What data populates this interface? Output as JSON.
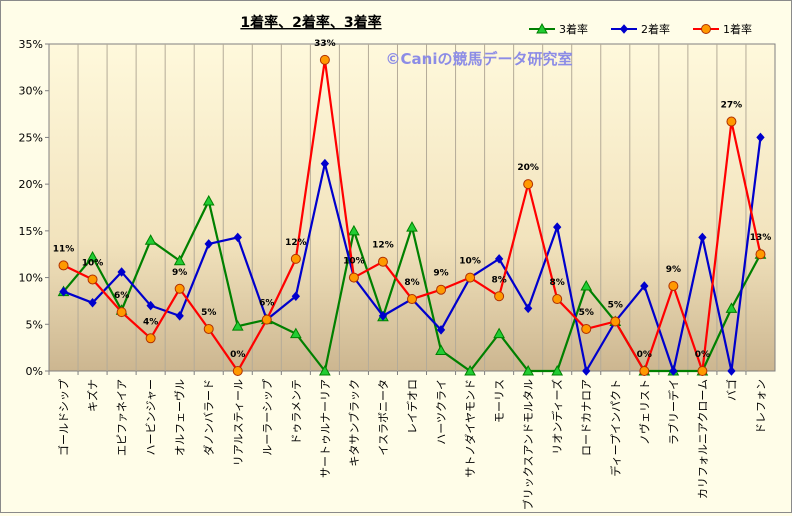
{
  "chart_data": {
    "type": "line",
    "title": "1着率、2着率、3着率",
    "watermark": "©Caniの競馬データ研究室",
    "xlabel": "",
    "ylabel": "",
    "ylim": [
      0,
      35
    ],
    "y_ticks": [
      "0%",
      "5%",
      "10%",
      "15%",
      "20%",
      "25%",
      "30%",
      "35%"
    ],
    "grid": "vertical",
    "legend_position": "top-right",
    "categories": [
      "ゴールドシップ",
      "キズナ",
      "エピファネイア",
      "ハービンジャー",
      "オルフェーヴル",
      "ダノンバラード",
      "リアルスティール",
      "ルーラーシップ",
      "ドゥラメンテ",
      "サートゥルナーリア",
      "キタサンブラック",
      "イスラボニータ",
      "レイデオロ",
      "ハーツクライ",
      "サトノダイヤモンド",
      "モーリス",
      "ブリックスアンドモルタル",
      "リオンディーズ",
      "ロードカナロア",
      "ディープインパクト",
      "ノヴェリスト",
      "ラブリーデイ",
      "カリフォルニアクローム",
      "バゴ",
      "ドレフォン"
    ],
    "series": [
      {
        "name": "3着率",
        "color": "#008000",
        "fill": "#22cc33",
        "marker": "triangle",
        "values": [
          8.5,
          12.2,
          6.5,
          14.0,
          11.8,
          18.2,
          4.8,
          5.5,
          4.0,
          0,
          15.0,
          5.8,
          15.4,
          2.2,
          0,
          4.0,
          0,
          0,
          9.1,
          5.3,
          0,
          0,
          0,
          6.7,
          12.5
        ]
      },
      {
        "name": "2着率",
        "color": "#0000cc",
        "fill": "#0000cc",
        "marker": "diamond",
        "values": [
          8.5,
          7.3,
          10.6,
          7.0,
          5.9,
          13.6,
          14.3,
          5.5,
          8.0,
          22.2,
          10.0,
          5.9,
          7.7,
          4.4,
          10.0,
          12.0,
          6.7,
          15.4,
          0,
          5.3,
          9.1,
          0,
          14.3,
          0,
          25.0
        ]
      },
      {
        "name": "1着率",
        "color": "#ff0000",
        "fill": "#ff9900",
        "marker": "circle",
        "values": [
          11.3,
          9.8,
          6.3,
          3.5,
          8.8,
          4.5,
          0,
          5.5,
          12.0,
          33.3,
          10.0,
          11.7,
          7.7,
          8.7,
          10.0,
          8.0,
          20.0,
          7.7,
          4.5,
          5.3,
          0,
          9.1,
          0,
          26.7,
          12.5
        ]
      }
    ],
    "data_labels": {
      "series": "1着率",
      "texts": [
        "11%",
        "10%",
        "6%",
        "4%",
        "9%",
        "5%",
        "0%",
        "6%",
        "12%",
        "33%",
        "10%",
        "12%",
        "8%",
        "9%",
        "10%",
        "8%",
        "20%",
        "8%",
        "5%",
        "5%",
        "0%",
        "9%",
        "0%",
        "27%",
        "13%"
      ]
    }
  }
}
